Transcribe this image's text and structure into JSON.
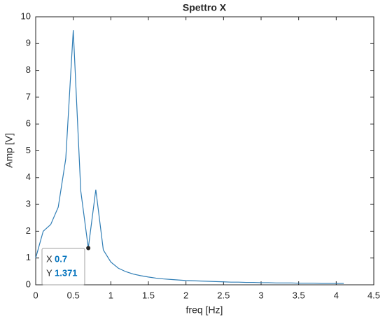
{
  "chart_data": {
    "type": "line",
    "title": "Spettro X",
    "xlabel": "freq [Hz]",
    "ylabel": "Amp [V]",
    "x": [
      0,
      0.1,
      0.2,
      0.3,
      0.4,
      0.5,
      0.6,
      0.7,
      0.8,
      0.9,
      1.0,
      1.1,
      1.2,
      1.3,
      1.4,
      1.5,
      1.6,
      1.7,
      1.8,
      1.9,
      2.0,
      2.1,
      2.2,
      2.3,
      2.4,
      2.5,
      2.6,
      2.7,
      2.8,
      2.9,
      3.0,
      3.1,
      3.2,
      3.3,
      3.4,
      3.5,
      3.6,
      3.7,
      3.8,
      3.9,
      4.0,
      4.1
    ],
    "values": [
      1.0,
      2.0,
      2.25,
      2.9,
      4.7,
      9.5,
      3.5,
      1.371,
      3.55,
      1.3,
      0.85,
      0.62,
      0.49,
      0.4,
      0.34,
      0.29,
      0.25,
      0.22,
      0.2,
      0.18,
      0.16,
      0.15,
      0.14,
      0.13,
      0.12,
      0.11,
      0.1,
      0.1,
      0.09,
      0.09,
      0.08,
      0.08,
      0.07,
      0.07,
      0.07,
      0.06,
      0.06,
      0.06,
      0.05,
      0.05,
      0.05,
      0.05
    ],
    "color": "#2f7db5",
    "xlim": [
      0,
      4.5
    ],
    "xticks": [
      0,
      0.5,
      1,
      1.5,
      2,
      2.5,
      3,
      3.5,
      4,
      4.5
    ],
    "ylim": [
      0,
      10
    ],
    "yticks": [
      0,
      1,
      2,
      3,
      4,
      5,
      6,
      7,
      8,
      9,
      10
    ],
    "grid": false,
    "datatip": {
      "x_label": "X",
      "x": 0.7,
      "y_label": "Y",
      "y": 1.371
    }
  }
}
